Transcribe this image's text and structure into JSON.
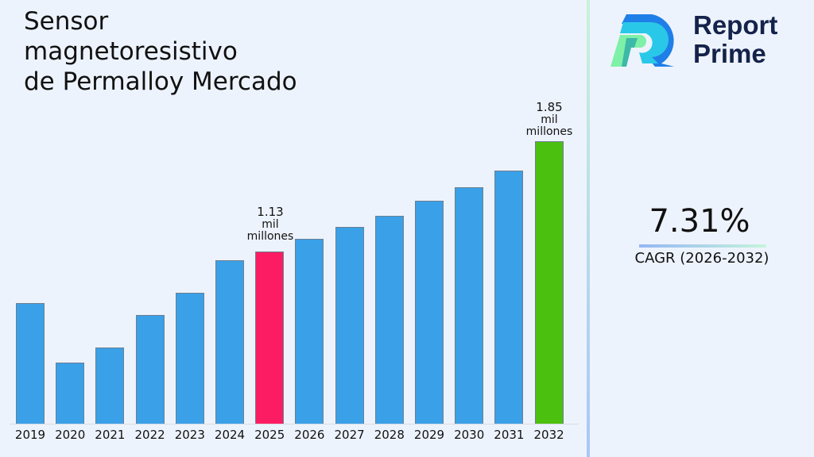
{
  "title_lines": [
    "Sensor",
    "magnetoresistivo",
    "de Permalloy Mercado"
  ],
  "brand": {
    "line1": "Report",
    "line2": "Prime"
  },
  "cagr": {
    "value": "7.31%",
    "label": "CAGR (2026-2032)"
  },
  "annotations": {
    "a2025": {
      "value": "1.13",
      "unit1": "mil",
      "unit2": "millones"
    },
    "a2032": {
      "value": "1.85",
      "unit1": "mil",
      "unit2": "millones"
    }
  },
  "colors": {
    "default": "#3aa0e8",
    "highlight_2025": "#fc1c64",
    "highlight_2032": "#4cc00e"
  },
  "chart_data": {
    "type": "bar",
    "title": "Sensor magnetoresistivo de Permalloy Mercado",
    "xlabel": "",
    "ylabel": "",
    "unit": "mil millones",
    "categories": [
      "2019",
      "2020",
      "2021",
      "2022",
      "2023",
      "2024",
      "2025",
      "2026",
      "2027",
      "2028",
      "2029",
      "2030",
      "2031",
      "2032"
    ],
    "values": [
      0.79,
      0.4,
      0.5,
      0.71,
      0.86,
      1.07,
      1.13,
      1.21,
      1.29,
      1.36,
      1.46,
      1.55,
      1.66,
      1.85
    ],
    "labeled_points": {
      "2025": "1.13 mil millones",
      "2032": "1.85 mil millones"
    },
    "grid": false,
    "legend": "none",
    "cagr": "7.31% (2026-2032)"
  }
}
